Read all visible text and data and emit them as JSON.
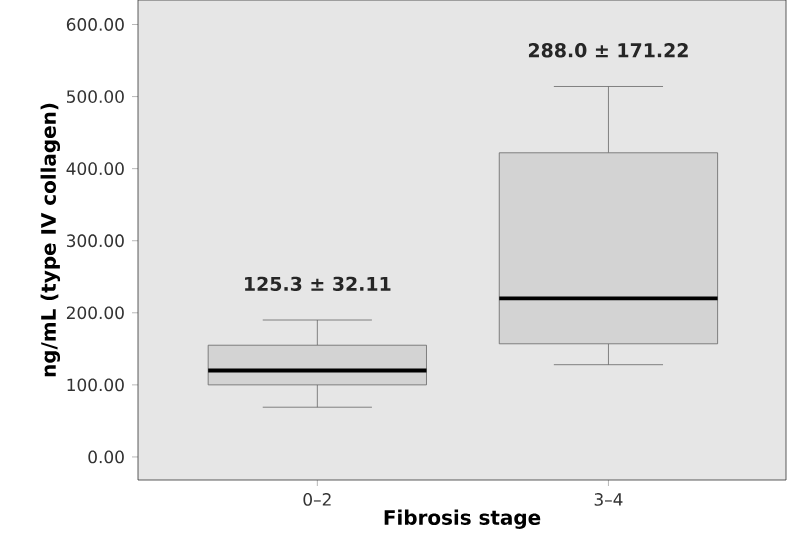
{
  "chart_data": {
    "type": "box",
    "xlabel": "Fibrosis stage",
    "ylabel": "ng/mL (type IV collagen)",
    "categories": [
      "0–2",
      "3–4"
    ],
    "boxes": [
      {
        "low": 69,
        "q1": 100,
        "median": 120,
        "q3": 155,
        "high": 190
      },
      {
        "low": 128,
        "q1": 157,
        "median": 220,
        "q3": 422,
        "high": 514
      }
    ],
    "color": "#d3d3d3",
    "ylim": [
      -32,
      634
    ],
    "yticks": [
      {
        "value": 0,
        "label": "0.00"
      },
      {
        "value": 100,
        "label": "100.00"
      },
      {
        "value": 200,
        "label": "200.00"
      },
      {
        "value": 300,
        "label": "300.00"
      },
      {
        "value": 400,
        "label": "400.00"
      },
      {
        "value": 500,
        "label": "500.00"
      },
      {
        "value": 600,
        "label": "600.00"
      }
    ],
    "annotations": [
      "125.3 ± 32.11",
      "288.0 ± 171.22"
    ]
  }
}
